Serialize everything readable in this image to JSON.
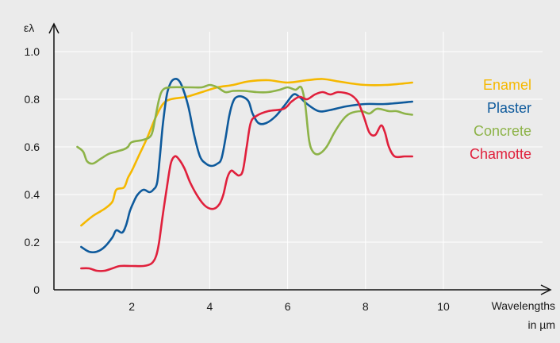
{
  "chart_data": {
    "type": "line",
    "title": "",
    "ylabel": "ελ",
    "xlabel_line1": "Wavelengths",
    "xlabel_line2": "in µm",
    "xlim": [
      0,
      10
    ],
    "ylim": [
      0,
      1.0
    ],
    "x_ticks": [
      "2",
      "4",
      "6",
      "8",
      "10"
    ],
    "y_ticks": [
      "0",
      "0.2",
      "0.4",
      "0.6",
      "0.8",
      "1.0"
    ],
    "grid": true,
    "legend_position": "right",
    "series": [
      {
        "name": "Enamel",
        "color": "#f5b800",
        "points": [
          [
            0.7,
            0.27
          ],
          [
            1.0,
            0.31
          ],
          [
            1.3,
            0.34
          ],
          [
            1.5,
            0.37
          ],
          [
            1.6,
            0.42
          ],
          [
            1.8,
            0.43
          ],
          [
            1.9,
            0.47
          ],
          [
            2.0,
            0.5
          ],
          [
            2.2,
            0.57
          ],
          [
            2.4,
            0.64
          ],
          [
            2.6,
            0.72
          ],
          [
            2.8,
            0.78
          ],
          [
            3.0,
            0.8
          ],
          [
            3.4,
            0.81
          ],
          [
            3.8,
            0.83
          ],
          [
            4.2,
            0.85
          ],
          [
            4.6,
            0.86
          ],
          [
            5.0,
            0.875
          ],
          [
            5.5,
            0.88
          ],
          [
            6.0,
            0.87
          ],
          [
            6.5,
            0.88
          ],
          [
            6.9,
            0.885
          ],
          [
            7.3,
            0.875
          ],
          [
            7.7,
            0.865
          ],
          [
            8.0,
            0.86
          ],
          [
            8.5,
            0.86
          ],
          [
            8.9,
            0.865
          ],
          [
            9.2,
            0.87
          ]
        ]
      },
      {
        "name": "Plaster",
        "color": "#0e5a9c",
        "points": [
          [
            0.7,
            0.18
          ],
          [
            0.9,
            0.16
          ],
          [
            1.1,
            0.16
          ],
          [
            1.3,
            0.18
          ],
          [
            1.5,
            0.22
          ],
          [
            1.6,
            0.25
          ],
          [
            1.75,
            0.24
          ],
          [
            1.85,
            0.27
          ],
          [
            1.95,
            0.33
          ],
          [
            2.05,
            0.37
          ],
          [
            2.15,
            0.4
          ],
          [
            2.3,
            0.42
          ],
          [
            2.45,
            0.41
          ],
          [
            2.55,
            0.42
          ],
          [
            2.65,
            0.45
          ],
          [
            2.72,
            0.56
          ],
          [
            2.8,
            0.7
          ],
          [
            2.9,
            0.82
          ],
          [
            3.0,
            0.87
          ],
          [
            3.1,
            0.885
          ],
          [
            3.2,
            0.88
          ],
          [
            3.3,
            0.85
          ],
          [
            3.45,
            0.77
          ],
          [
            3.6,
            0.65
          ],
          [
            3.75,
            0.56
          ],
          [
            3.9,
            0.53
          ],
          [
            4.05,
            0.52
          ],
          [
            4.2,
            0.53
          ],
          [
            4.3,
            0.55
          ],
          [
            4.4,
            0.63
          ],
          [
            4.5,
            0.73
          ],
          [
            4.6,
            0.79
          ],
          [
            4.7,
            0.81
          ],
          [
            4.85,
            0.81
          ],
          [
            5.0,
            0.79
          ],
          [
            5.1,
            0.74
          ],
          [
            5.25,
            0.7
          ],
          [
            5.45,
            0.7
          ],
          [
            5.7,
            0.73
          ],
          [
            5.95,
            0.78
          ],
          [
            6.15,
            0.82
          ],
          [
            6.3,
            0.81
          ],
          [
            6.5,
            0.78
          ],
          [
            6.8,
            0.75
          ],
          [
            7.1,
            0.755
          ],
          [
            7.5,
            0.77
          ],
          [
            8.0,
            0.78
          ],
          [
            8.5,
            0.78
          ],
          [
            9.2,
            0.79
          ]
        ]
      },
      {
        "name": "Concrete",
        "color": "#8db348",
        "points": [
          [
            0.6,
            0.6
          ],
          [
            0.75,
            0.58
          ],
          [
            0.85,
            0.54
          ],
          [
            1.0,
            0.53
          ],
          [
            1.2,
            0.55
          ],
          [
            1.4,
            0.57
          ],
          [
            1.6,
            0.58
          ],
          [
            1.8,
            0.59
          ],
          [
            1.9,
            0.6
          ],
          [
            2.0,
            0.62
          ],
          [
            2.3,
            0.63
          ],
          [
            2.5,
            0.65
          ],
          [
            2.6,
            0.72
          ],
          [
            2.7,
            0.8
          ],
          [
            2.8,
            0.84
          ],
          [
            3.0,
            0.85
          ],
          [
            3.5,
            0.85
          ],
          [
            3.8,
            0.85
          ],
          [
            4.0,
            0.86
          ],
          [
            4.2,
            0.85
          ],
          [
            4.4,
            0.83
          ],
          [
            4.6,
            0.835
          ],
          [
            4.9,
            0.835
          ],
          [
            5.2,
            0.83
          ],
          [
            5.5,
            0.83
          ],
          [
            5.8,
            0.84
          ],
          [
            6.0,
            0.85
          ],
          [
            6.2,
            0.84
          ],
          [
            6.35,
            0.85
          ],
          [
            6.45,
            0.78
          ],
          [
            6.55,
            0.63
          ],
          [
            6.65,
            0.58
          ],
          [
            6.8,
            0.57
          ],
          [
            7.0,
            0.6
          ],
          [
            7.2,
            0.66
          ],
          [
            7.4,
            0.71
          ],
          [
            7.6,
            0.74
          ],
          [
            7.9,
            0.75
          ],
          [
            8.1,
            0.74
          ],
          [
            8.3,
            0.76
          ],
          [
            8.6,
            0.75
          ],
          [
            8.8,
            0.75
          ],
          [
            9.0,
            0.74
          ],
          [
            9.2,
            0.735
          ]
        ]
      },
      {
        "name": "Chamotte",
        "color": "#e0203c",
        "points": [
          [
            0.7,
            0.09
          ],
          [
            0.9,
            0.09
          ],
          [
            1.1,
            0.08
          ],
          [
            1.3,
            0.08
          ],
          [
            1.5,
            0.09
          ],
          [
            1.7,
            0.1
          ],
          [
            2.0,
            0.1
          ],
          [
            2.3,
            0.1
          ],
          [
            2.5,
            0.11
          ],
          [
            2.62,
            0.14
          ],
          [
            2.7,
            0.2
          ],
          [
            2.8,
            0.32
          ],
          [
            2.9,
            0.43
          ],
          [
            3.0,
            0.53
          ],
          [
            3.1,
            0.56
          ],
          [
            3.2,
            0.55
          ],
          [
            3.35,
            0.51
          ],
          [
            3.5,
            0.45
          ],
          [
            3.7,
            0.39
          ],
          [
            3.9,
            0.35
          ],
          [
            4.1,
            0.34
          ],
          [
            4.25,
            0.36
          ],
          [
            4.35,
            0.4
          ],
          [
            4.45,
            0.47
          ],
          [
            4.55,
            0.5
          ],
          [
            4.65,
            0.49
          ],
          [
            4.75,
            0.48
          ],
          [
            4.85,
            0.5
          ],
          [
            4.95,
            0.6
          ],
          [
            5.05,
            0.7
          ],
          [
            5.2,
            0.73
          ],
          [
            5.5,
            0.75
          ],
          [
            5.9,
            0.76
          ],
          [
            6.1,
            0.79
          ],
          [
            6.3,
            0.81
          ],
          [
            6.5,
            0.8
          ],
          [
            6.7,
            0.82
          ],
          [
            6.9,
            0.83
          ],
          [
            7.1,
            0.82
          ],
          [
            7.3,
            0.83
          ],
          [
            7.6,
            0.82
          ],
          [
            7.8,
            0.79
          ],
          [
            7.95,
            0.73
          ],
          [
            8.1,
            0.66
          ],
          [
            8.25,
            0.65
          ],
          [
            8.4,
            0.69
          ],
          [
            8.5,
            0.66
          ],
          [
            8.6,
            0.6
          ],
          [
            8.75,
            0.56
          ],
          [
            9.0,
            0.56
          ],
          [
            9.2,
            0.56
          ]
        ]
      }
    ]
  }
}
